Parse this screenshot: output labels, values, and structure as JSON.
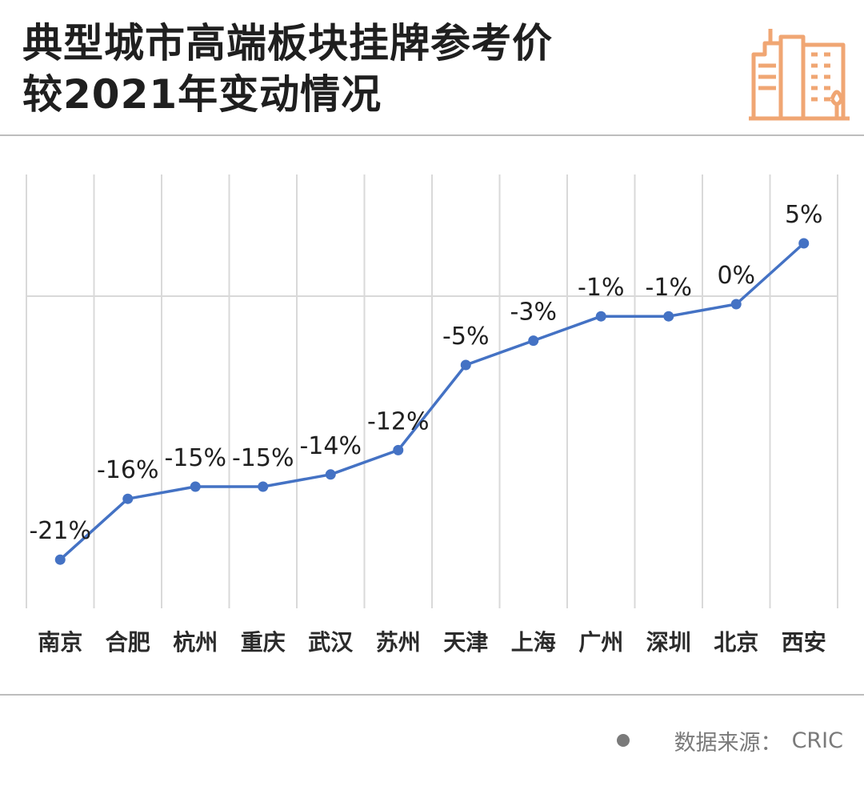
{
  "title_lines": [
    "典型城市高端板块挂牌参考价",
    "较2021年变动情况"
  ],
  "icons": {
    "logo": "city-buildings-icon",
    "footer_bullet": "bullet-dot-icon"
  },
  "colors": {
    "line": "#4472c4",
    "grid": "#d9d9d9",
    "logo": "#f0a673",
    "text": "#1f1f1f",
    "muted": "#7a7a7a"
  },
  "footer": {
    "source_label": "数据来源：",
    "source_value": "CRIC"
  },
  "chart_data": {
    "type": "line",
    "title": "典型城市高端板块挂牌参考价较2021年变动情况",
    "categories": [
      "南京",
      "合肥",
      "杭州",
      "重庆",
      "武汉",
      "苏州",
      "天津",
      "上海",
      "广州",
      "深圳",
      "北京",
      "西安"
    ],
    "values": [
      -21,
      -16,
      -15,
      -15,
      -14,
      -12,
      -5,
      -3,
      -1,
      -1,
      0,
      5
    ],
    "data_labels": [
      "-21%",
      "-16%",
      "-15%",
      "-15%",
      "-14%",
      "-12%",
      "-5%",
      "-3%",
      "-1%",
      "-1%",
      "0%",
      "5%"
    ],
    "ylim": [
      -25,
      5
    ],
    "grid": true,
    "legend": false
  }
}
